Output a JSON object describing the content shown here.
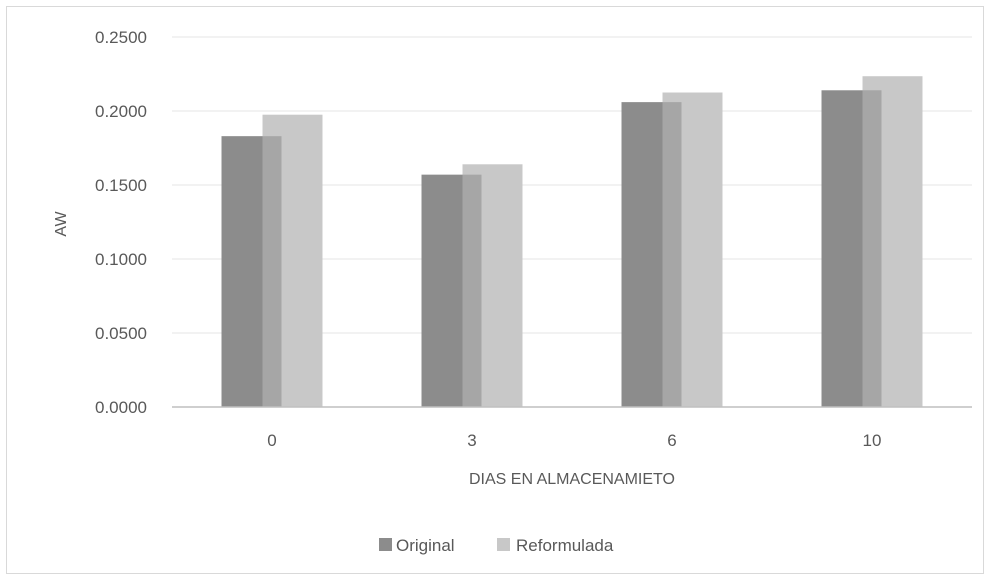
{
  "chart_data": {
    "type": "bar",
    "title": "",
    "xlabel": "DIAS EN ALMACENAMIETO",
    "ylabel": "AW",
    "categories": [
      "0",
      "3",
      "6",
      "10"
    ],
    "series": [
      {
        "name": "Original",
        "values": [
          0.183,
          0.157,
          0.206,
          0.214
        ],
        "color": "#8c8c8c"
      },
      {
        "name": "Reformulada",
        "values": [
          0.1975,
          0.164,
          0.2125,
          0.2235
        ],
        "color": "#c8c8c8"
      }
    ],
    "overlap_color": "#a6a6a6",
    "ylim": [
      0,
      0.25
    ],
    "yticks": [
      "0.0000",
      "0.0500",
      "0.1000",
      "0.1500",
      "0.2000",
      "0.2500"
    ],
    "ytick_values": [
      0,
      0.05,
      0.1,
      0.15,
      0.2,
      0.25
    ],
    "grid": true,
    "legend_position": "bottom"
  }
}
